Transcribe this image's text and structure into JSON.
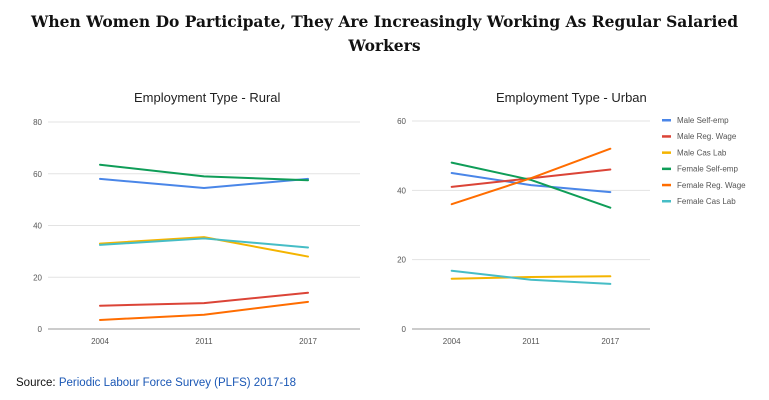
{
  "page": {
    "title_lines": [
      "When Women Do Participate, They Are Increasingly Working As Regular Salaried",
      "Workers"
    ],
    "source_label": "Source:",
    "source_link": "Periodic Labour Force Survey (PLFS) 2017-18"
  },
  "colors": {
    "male_self_emp": "#4a86e8",
    "male_reg_wage": "#db4437",
    "male_cas_lab": "#f4b400",
    "female_self_emp": "#0f9d58",
    "female_reg_wage": "#ff6d00",
    "female_cas_lab": "#46bdc6"
  },
  "chart_data": [
    {
      "type": "line",
      "title": "Employment Type - Rural",
      "x": [
        "2004",
        "2011",
        "2017"
      ],
      "ylim": [
        0,
        80
      ],
      "yticks": [
        0,
        20,
        40,
        60,
        80
      ],
      "grid": true,
      "legend": "none",
      "series": [
        {
          "color": "#4a86e8",
          "values": [
            58,
            54.5,
            58
          ]
        },
        {
          "color": "#db4437",
          "values": [
            9,
            10,
            14
          ]
        },
        {
          "color": "#f4b400",
          "values": [
            33,
            35.5,
            28
          ]
        },
        {
          "color": "#0f9d58",
          "values": [
            63.5,
            59,
            57.5
          ]
        },
        {
          "color": "#ff6d00",
          "values": [
            3.5,
            5.5,
            10.5
          ]
        },
        {
          "color": "#46bdc6",
          "values": [
            32.5,
            35,
            31.5
          ]
        }
      ]
    },
    {
      "type": "line",
      "title": "Employment Type - Urban",
      "x": [
        "2004",
        "2011",
        "2017"
      ],
      "ylim": [
        0,
        60
      ],
      "yticks": [
        0,
        20,
        40,
        60
      ],
      "grid": true,
      "legend": "right",
      "series": [
        {
          "name": "Male Self-emp",
          "color": "#4a86e8",
          "values": [
            45,
            41.5,
            39.5
          ]
        },
        {
          "name": "Male Reg. Wage",
          "color": "#db4437",
          "values": [
            41,
            43.5,
            46
          ]
        },
        {
          "name": "Male Cas Lab",
          "color": "#f4b400",
          "values": [
            14.5,
            15,
            15.2
          ]
        },
        {
          "name": "Female Self-emp",
          "color": "#0f9d58",
          "values": [
            48,
            43,
            35
          ]
        },
        {
          "name": "Female Reg. Wage",
          "color": "#ff6d00",
          "values": [
            36,
            43.5,
            52
          ]
        },
        {
          "name": "Female Cas Lab",
          "color": "#46bdc6",
          "values": [
            16.8,
            14.2,
            13
          ]
        }
      ]
    }
  ]
}
